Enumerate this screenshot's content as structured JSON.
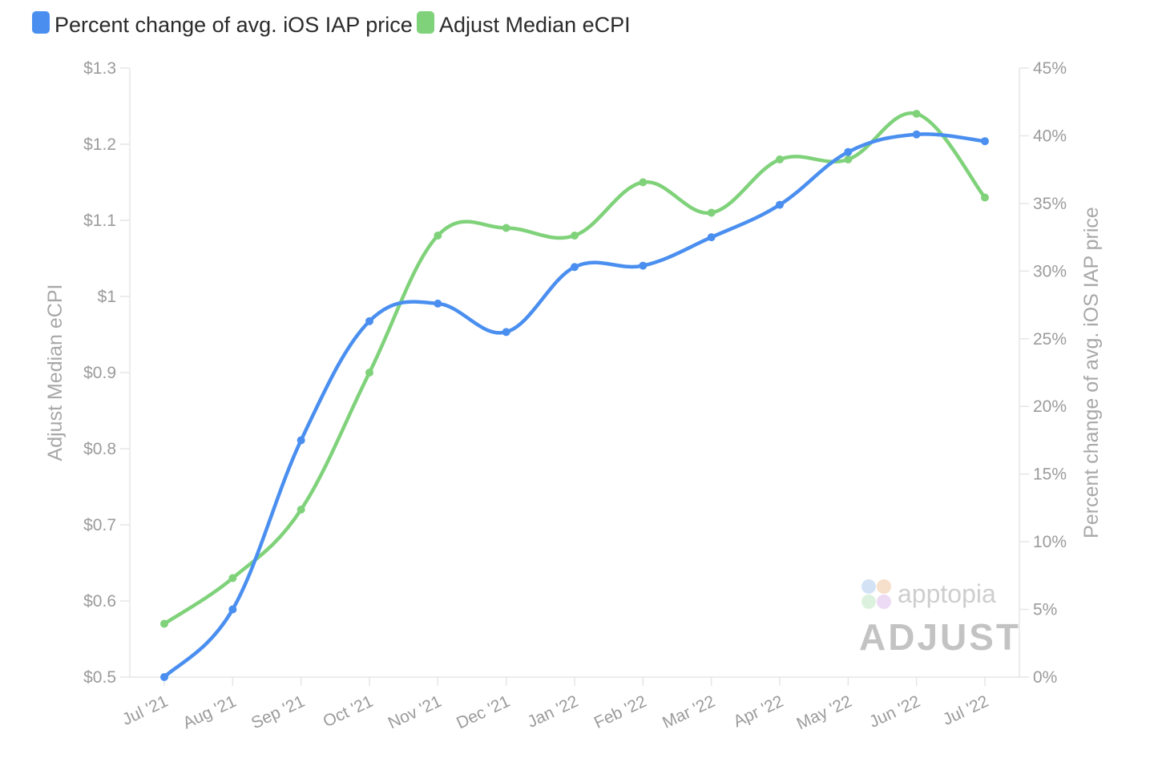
{
  "legend": [
    {
      "label": "Percent change of avg. iOS IAP price",
      "color": "#4a8ff0"
    },
    {
      "label": "Adjust Median eCPI",
      "color": "#7fd27a"
    }
  ],
  "watermark": {
    "brand1": "apptopia",
    "brand2": "ADJUST"
  },
  "chart_data": {
    "type": "line",
    "categories": [
      "Jul '21",
      "Aug '21",
      "Sep '21",
      "Oct '21",
      "Nov '21",
      "Dec '21",
      "Jan '22",
      "Feb '22",
      "Mar '22",
      "Apr '22",
      "May '22",
      "Jun '22",
      "Jul '22"
    ],
    "y_left": {
      "label": "Adjust Median eCPI",
      "range": [
        0.5,
        1.3
      ],
      "ticks": [
        0.5,
        0.6,
        0.7,
        0.8,
        0.9,
        1.0,
        1.1,
        1.2,
        1.3
      ],
      "tick_labels": [
        "$0.5",
        "$0.6",
        "$0.7",
        "$0.8",
        "$0.9",
        "$1",
        "$1.1",
        "$1.2",
        "$1.3"
      ]
    },
    "y_right": {
      "label": "Percent change of avg. iOS IAP price",
      "range": [
        0,
        45
      ],
      "ticks": [
        0,
        5,
        10,
        15,
        20,
        25,
        30,
        35,
        40,
        45
      ],
      "tick_labels": [
        "0%",
        "5%",
        "10%",
        "15%",
        "20%",
        "25%",
        "30%",
        "35%",
        "40%",
        "45%"
      ]
    },
    "series": [
      {
        "name": "Percent change of avg. iOS IAP price",
        "axis": "right",
        "color": "#4a8ff0",
        "values": [
          0,
          5.0,
          17.5,
          26.3,
          27.6,
          25.5,
          30.3,
          30.4,
          32.5,
          34.9,
          38.8,
          40.1,
          39.6
        ]
      },
      {
        "name": "Adjust Median eCPI",
        "axis": "left",
        "color": "#7fd27a",
        "values": [
          0.57,
          0.63,
          0.72,
          0.9,
          1.08,
          1.09,
          1.08,
          1.15,
          1.11,
          1.18,
          1.18,
          1.24,
          1.13
        ]
      }
    ],
    "grid": false,
    "legend_position": "top-left"
  }
}
